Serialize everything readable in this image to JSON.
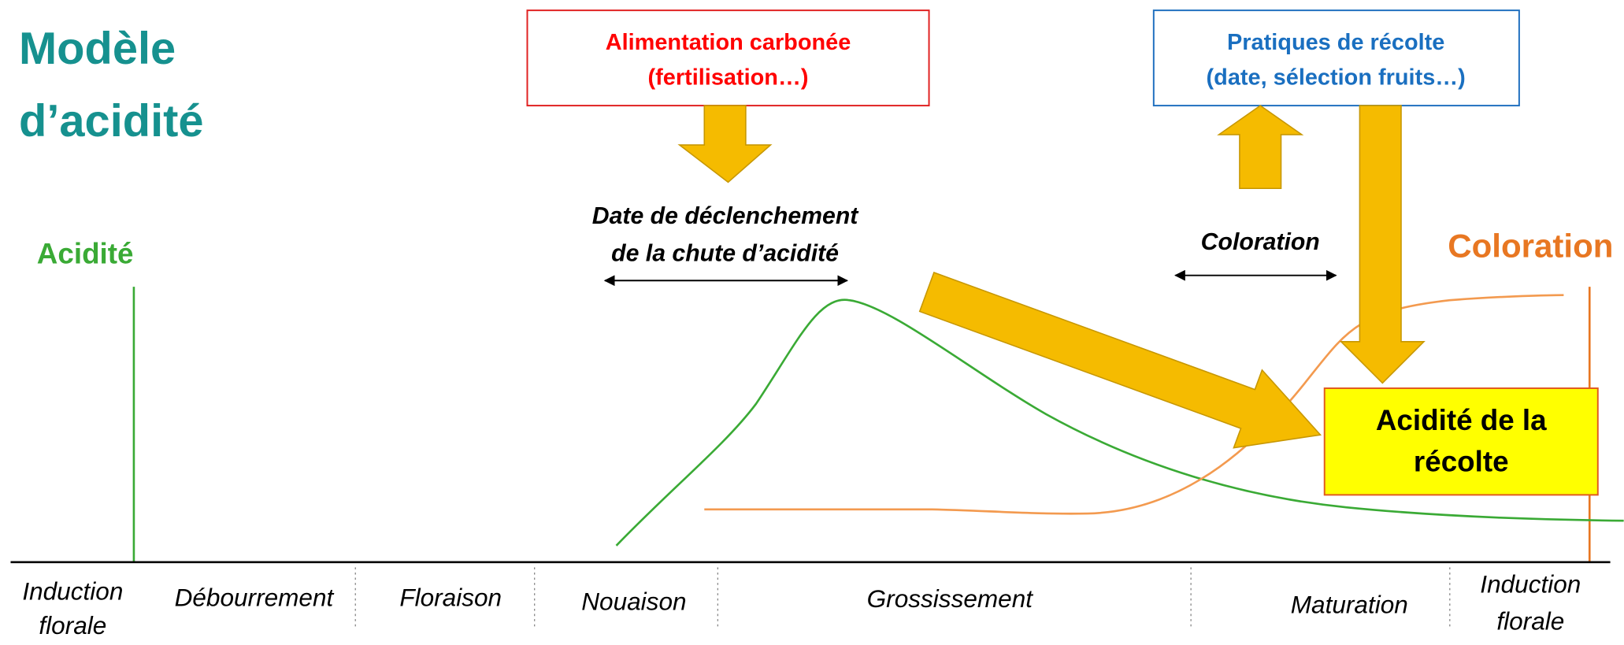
{
  "title": [
    "Modèle",
    "d’acidité"
  ],
  "left_axis_label": "Acidité",
  "right_axis_label": "Coloration",
  "boxes": {
    "carbon_supply": [
      "Alimentation carbonée",
      "(fertilisation…)"
    ],
    "harvest_practices": [
      "Pratiques de récolte",
      "(date, sélection fruits…)"
    ],
    "harvest_acidity": [
      "Acidité de la",
      "récolte"
    ]
  },
  "annotations": {
    "trigger_date": [
      "Date de déclenchement",
      "de la chute d’acidité"
    ],
    "coloration": "Coloration"
  },
  "stages": [
    [
      "Induction",
      "florale"
    ],
    "Débourrement",
    "Floraison",
    "Nouaison",
    "Grossissement",
    "Maturation",
    [
      "Induction",
      "florale"
    ]
  ]
}
